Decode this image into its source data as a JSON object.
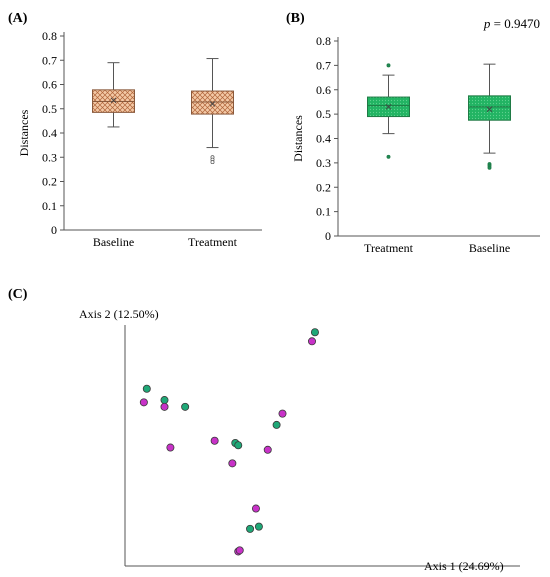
{
  "panels": {
    "a_label": "(A)",
    "b_label": "(B)",
    "c_label": "(C)"
  },
  "chart_data": [
    {
      "type": "box",
      "panel": "(A)",
      "ylabel": "Distances",
      "ylim": [
        0,
        0.8
      ],
      "yticks": [
        "0",
        "0.1",
        "0.2",
        "0.3",
        "0.4",
        "0.5",
        "0.6",
        "0.7",
        "0.8"
      ],
      "categories": [
        "Baseline",
        "Treatment"
      ],
      "fill_color": "#e2a27a",
      "boxes": [
        {
          "category": "Baseline",
          "whisker_low": 0.425,
          "q1": 0.485,
          "median": 0.53,
          "mean": 0.535,
          "q3": 0.578,
          "whisker_high": 0.69,
          "outliers": []
        },
        {
          "category": "Treatment",
          "whisker_low": 0.34,
          "q1": 0.478,
          "median": 0.528,
          "mean": 0.52,
          "q3": 0.573,
          "whisker_high": 0.707,
          "outliers": [
            0.3,
            0.29,
            0.28
          ]
        }
      ]
    },
    {
      "type": "box",
      "panel": "(B)",
      "ylabel": "Distances",
      "ylim": [
        0,
        0.8
      ],
      "yticks": [
        "0",
        "0.1",
        "0.2",
        "0.3",
        "0.4",
        "0.5",
        "0.6",
        "0.7",
        "0.8"
      ],
      "categories": [
        "Treatment",
        "Baseline"
      ],
      "fill_color": "#22b463",
      "annotation": {
        "p_symbol": "p",
        "p_rest": " = 0.9470"
      },
      "boxes": [
        {
          "category": "Treatment",
          "whisker_low": 0.42,
          "q1": 0.49,
          "median": 0.535,
          "mean": 0.53,
          "q3": 0.57,
          "whisker_high": 0.66,
          "outliers": [
            0.7,
            0.325
          ]
        },
        {
          "category": "Baseline",
          "whisker_low": 0.34,
          "q1": 0.475,
          "median": 0.53,
          "mean": 0.52,
          "q3": 0.575,
          "whisker_high": 0.705,
          "outliers": [
            0.295,
            0.288,
            0.28
          ]
        }
      ]
    },
    {
      "type": "scatter",
      "panel": "(C)",
      "xlabel": "Axis 1 (24.69%)",
      "ylabel": "Axis 2 (12.50%)",
      "xlim": [
        0,
        1
      ],
      "ylim": [
        0,
        1
      ],
      "series": [
        {
          "color": "#1fa877",
          "points": [
            [
              0.04,
              0.74
            ],
            [
              0.1,
              0.69
            ],
            [
              0.17,
              0.66
            ],
            [
              0.34,
              0.5
            ],
            [
              0.35,
              0.49
            ],
            [
              0.39,
              0.12
            ],
            [
              0.42,
              0.13
            ],
            [
              0.48,
              0.58
            ],
            [
              0.61,
              0.99
            ]
          ]
        },
        {
          "color": "#c832c8",
          "points": [
            [
              0.03,
              0.68
            ],
            [
              0.1,
              0.66
            ],
            [
              0.12,
              0.48
            ],
            [
              0.27,
              0.51
            ],
            [
              0.33,
              0.41
            ],
            [
              0.35,
              0.02
            ],
            [
              0.355,
              0.025
            ],
            [
              0.41,
              0.21
            ],
            [
              0.45,
              0.47
            ],
            [
              0.5,
              0.63
            ],
            [
              0.6,
              0.95
            ]
          ]
        }
      ]
    }
  ]
}
